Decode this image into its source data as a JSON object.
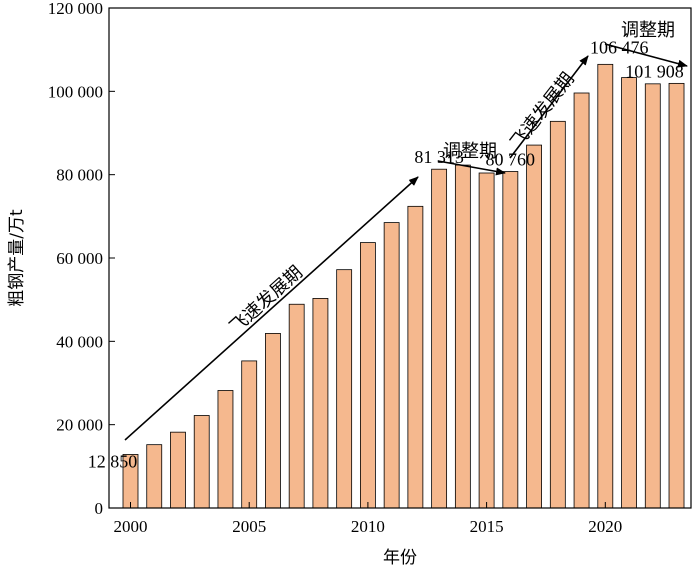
{
  "chart_data": {
    "type": "bar",
    "x": [
      2000,
      2001,
      2002,
      2003,
      2004,
      2005,
      2006,
      2007,
      2008,
      2009,
      2010,
      2011,
      2012,
      2013,
      2014,
      2015,
      2016,
      2017,
      2018,
      2019,
      2020,
      2021,
      2022,
      2023
    ],
    "values": [
      12850,
      15200,
      18200,
      22200,
      28200,
      35300,
      41900,
      48900,
      50300,
      57200,
      63700,
      68500,
      72400,
      81313,
      82300,
      80400,
      80760,
      87100,
      92800,
      99600,
      106476,
      103300,
      101800,
      101908
    ],
    "xlabel": "年份",
    "ylabel": "粗钢产量/万t",
    "xticks": [
      2000,
      2005,
      2010,
      2015,
      2020
    ],
    "yticks": [
      0,
      20000,
      40000,
      60000,
      80000,
      100000,
      120000
    ],
    "ytick_labels": [
      "0",
      "20 000",
      "40 000",
      "60 000",
      "80 000",
      "100 000",
      "120 000"
    ],
    "ylim": [
      0,
      120000
    ],
    "bar_color": "#f5b88e",
    "grid": false,
    "data_labels": [
      {
        "year": 2000,
        "text": "12 850"
      },
      {
        "year": 2013,
        "text": "81 313"
      },
      {
        "year": 2016,
        "text": "80 760"
      },
      {
        "year": 2020,
        "text": "106 476"
      },
      {
        "year": 2023,
        "text": "101 908"
      }
    ],
    "annotations": [
      {
        "text": "飞速发展期",
        "from_year": 2000,
        "to_year": 2013
      },
      {
        "text": "调整期",
        "from_year": 2013,
        "to_year": 2016
      },
      {
        "text": "飞速发展期",
        "from_year": 2016,
        "to_year": 2020
      },
      {
        "text": "调整期",
        "from_year": 2020,
        "to_year": 2023
      }
    ]
  }
}
